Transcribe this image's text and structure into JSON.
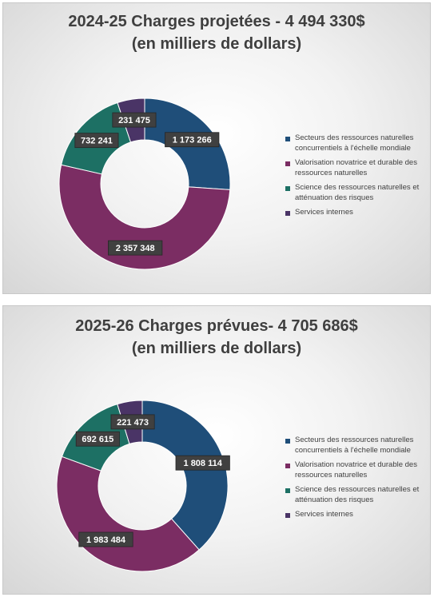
{
  "chart_data": [
    {
      "type": "pie",
      "title_line1": "2024-25 Charges projetées - 4 494 330$",
      "title_line2": "(en milliers de dollars)",
      "categories": [
        "Secteurs des ressources naturelles concurrentiels à l'échelle mondiale",
        "Valorisation novatrice et durable des ressources naturelles",
        "Science des ressources naturelles et atténuation des risques",
        "Services internes"
      ],
      "values": [
        1173266,
        2357348,
        732241,
        231475
      ],
      "value_labels": [
        "1 173 266",
        "2 357 348",
        "732 241",
        "231 475"
      ],
      "colors": [
        "#1f4e79",
        "#7b2d63",
        "#1d7064",
        "#4a3466"
      ],
      "donut": true,
      "legend_position": "right"
    },
    {
      "type": "pie",
      "title_line1": "2025-26 Charges prévues- 4 705 686$",
      "title_line2": "(en milliers de dollars)",
      "categories": [
        "Secteurs des ressources naturelles concurrentiels à l'échelle mondiale",
        "Valorisation novatrice et durable des ressources naturelles",
        "Science des ressources naturelles et atténuation des risques",
        "Services internes"
      ],
      "values": [
        1808114,
        1983484,
        692615,
        221473
      ],
      "value_labels": [
        "1 808 114",
        "1 983 484",
        "692 615",
        "221 473"
      ],
      "colors": [
        "#1f4e79",
        "#7b2d63",
        "#1d7064",
        "#4a3466"
      ],
      "donut": true,
      "legend_position": "right"
    }
  ]
}
